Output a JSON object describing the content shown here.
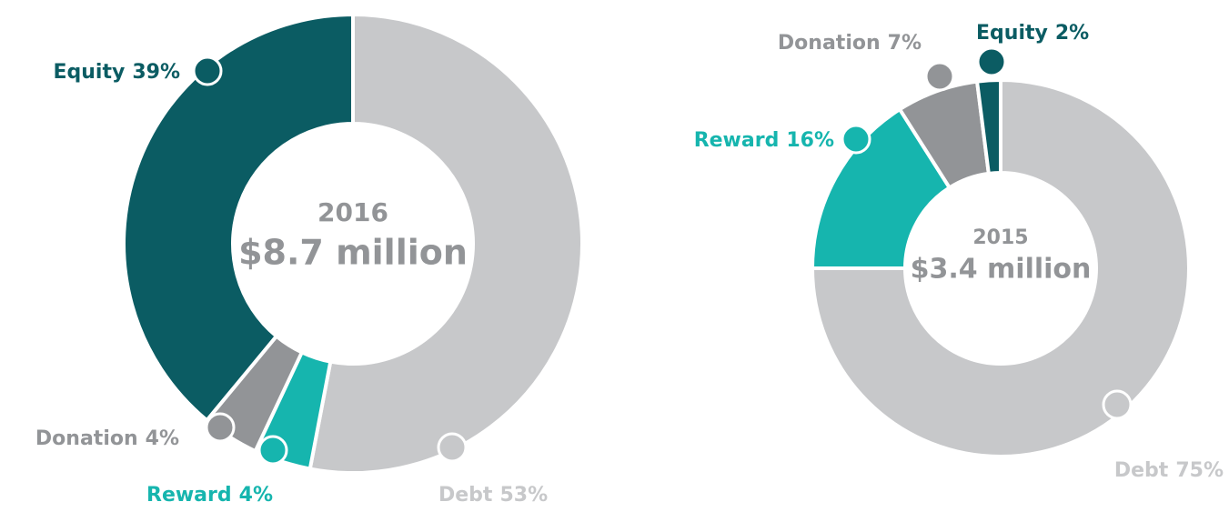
{
  "chart_data": [
    {
      "type": "pie",
      "title": "2016",
      "subtitle": "$8.7 million",
      "categories": [
        "Debt",
        "Reward",
        "Donation",
        "Equity"
      ],
      "values": [
        53,
        4,
        4,
        39
      ],
      "value_labels": [
        "53%",
        "4%",
        "4%",
        "39%"
      ],
      "colors": [
        "#c7c8ca",
        "#16b5ae",
        "#929497",
        "#0b5c63"
      ]
    },
    {
      "type": "pie",
      "title": "2015",
      "subtitle": "$3.4 million",
      "categories": [
        "Debt",
        "Reward",
        "Donation",
        "Equity"
      ],
      "values": [
        75,
        16,
        7,
        2
      ],
      "value_labels": [
        "75%",
        "16%",
        "7%",
        "2%"
      ],
      "colors": [
        "#c7c8ca",
        "#16b5ae",
        "#929497",
        "#0b5c63"
      ]
    }
  ]
}
